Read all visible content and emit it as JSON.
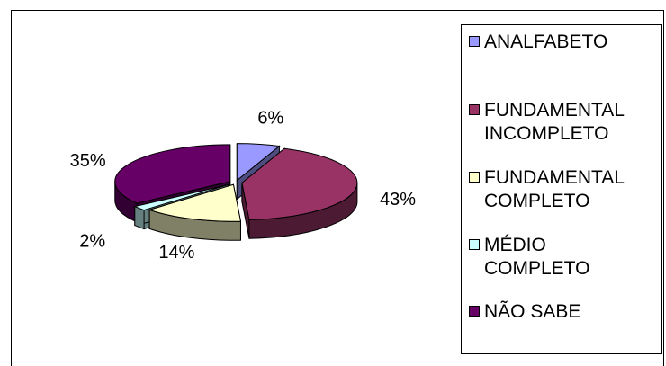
{
  "chart_data": {
    "type": "pie",
    "style": "exploded-3d",
    "categories": [
      "ANALFABETO",
      "FUNDAMENTAL INCOMPLETO",
      "FUNDAMENTAL COMPLETO",
      "MÉDIO COMPLETO",
      "NÃO SABE"
    ],
    "values": [
      6,
      43,
      14,
      2,
      35
    ],
    "value_labels": [
      "6%",
      "43%",
      "14%",
      "2%",
      "35%"
    ],
    "legend_placement": "right",
    "colors": {
      "top": [
        "#9999ff",
        "#993366",
        "#ffffcc",
        "#ccffff",
        "#660066"
      ],
      "side": [
        "#4d4d80",
        "#4d1a33",
        "#808066",
        "#668080",
        "#330033"
      ]
    }
  },
  "legend": {
    "items": [
      {
        "label": "ANALFABETO"
      },
      {
        "label": "FUNDAMENTAL\nINCOMPLETO"
      },
      {
        "label": "FUNDAMENTAL\nCOMPLETO"
      },
      {
        "label": "MÉDIO\nCOMPLETO"
      },
      {
        "label": "NÃO SABE"
      }
    ]
  }
}
